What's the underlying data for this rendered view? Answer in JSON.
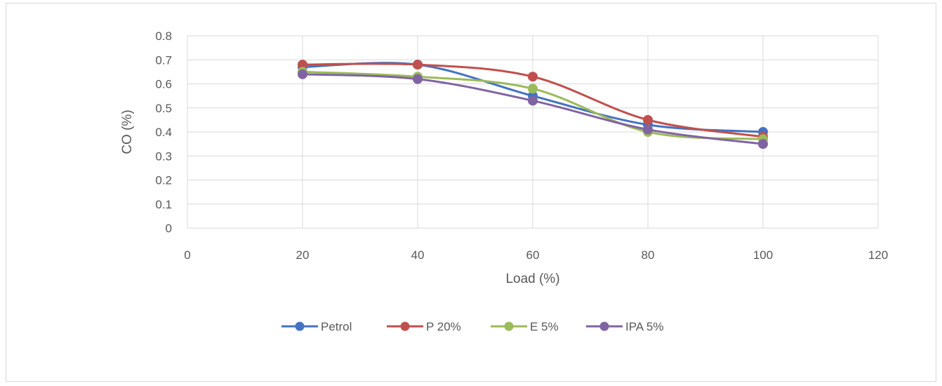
{
  "chart_data": {
    "type": "line",
    "title": "",
    "xlabel": "Load (%)",
    "ylabel": "CO (%)",
    "xlim": [
      0,
      120
    ],
    "ylim": [
      0,
      0.8
    ],
    "x_ticks": [
      "0",
      "20",
      "40",
      "60",
      "80",
      "100",
      "120"
    ],
    "y_ticks": [
      "0",
      "0.1",
      "0.2",
      "0.3",
      "0.4",
      "0.5",
      "0.6",
      "0.7",
      "0.8"
    ],
    "grid": true,
    "smooth": true,
    "legend_position": "bottom",
    "x": [
      20,
      40,
      60,
      80,
      100
    ],
    "series": [
      {
        "name": "Petrol",
        "color": "#4472C4",
        "values": [
          0.67,
          0.68,
          0.55,
          0.43,
          0.4
        ]
      },
      {
        "name": "P 20%",
        "color": "#C0504D",
        "values": [
          0.68,
          0.68,
          0.63,
          0.45,
          0.38
        ]
      },
      {
        "name": "E 5%",
        "color": "#9BBB59",
        "values": [
          0.65,
          0.63,
          0.58,
          0.4,
          0.37
        ]
      },
      {
        "name": "IPA 5%",
        "color": "#8064A2",
        "values": [
          0.64,
          0.62,
          0.53,
          0.41,
          0.35
        ]
      }
    ]
  }
}
